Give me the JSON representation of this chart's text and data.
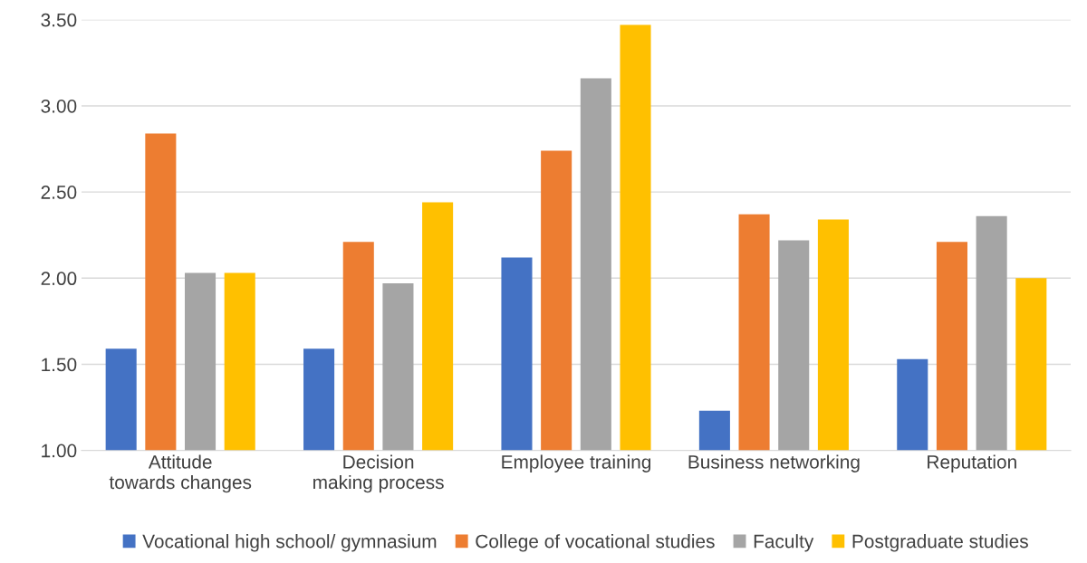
{
  "chart_data": {
    "type": "bar",
    "categories": [
      "Attitude towards changes",
      "Decision making process",
      "Employee training",
      "Business networking",
      "Reputation"
    ],
    "series": [
      {
        "name": "Vocational high school/ gymnasium",
        "color": "#4472c4",
        "values": [
          1.59,
          1.59,
          2.12,
          1.23,
          1.53
        ]
      },
      {
        "name": "College of vocational studies",
        "color": "#ed7d31",
        "values": [
          2.84,
          2.21,
          2.74,
          2.37,
          2.21
        ]
      },
      {
        "name": "Faculty",
        "color": "#a5a5a5",
        "values": [
          2.03,
          1.97,
          3.16,
          2.22,
          2.36
        ]
      },
      {
        "name": "Postgraduate studies",
        "color": "#ffc000",
        "values": [
          2.03,
          2.44,
          3.47,
          2.34,
          2.0
        ]
      }
    ],
    "ylim": [
      1,
      3.5
    ],
    "yticks": [
      {
        "value": 1,
        "label": "1.00"
      },
      {
        "value": 1.5,
        "label": "1.50"
      },
      {
        "value": 2,
        "label": "2.00"
      },
      {
        "value": 2.5,
        "label": "2.50"
      },
      {
        "value": 3,
        "label": "3.00"
      },
      {
        "value": 3.5,
        "label": "3.50"
      }
    ],
    "grid": "y",
    "legend": "bottom"
  }
}
